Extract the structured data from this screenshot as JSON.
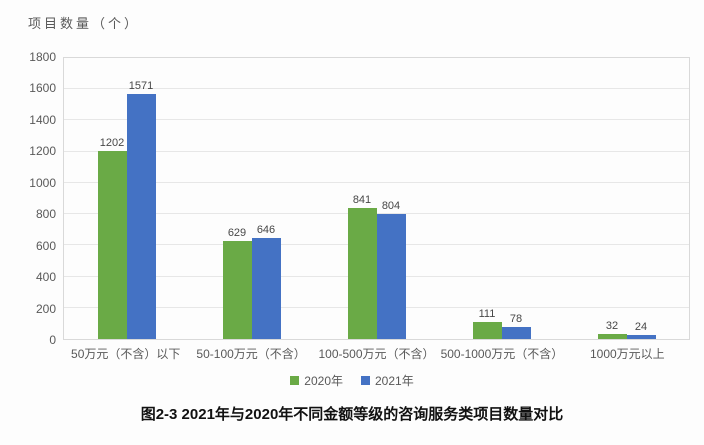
{
  "chart_data": {
    "type": "bar",
    "title": "",
    "ylabel": "项目数量（个）",
    "xlabel": "",
    "categories": [
      "50万元（不含）以下",
      "50-100万元（不含）",
      "100-500万元（不含）",
      "500-1000万元（不含）",
      "1000万元以上"
    ],
    "series": [
      {
        "name": "2020年",
        "color": "#6aaa46",
        "values": [
          1202,
          629,
          841,
          111,
          32
        ]
      },
      {
        "name": "2021年",
        "color": "#4472c4",
        "values": [
          1571,
          646,
          804,
          78,
          24
        ]
      }
    ],
    "ylim": [
      0,
      1800
    ],
    "ytick_step": 200,
    "grid": true,
    "legend_position": "bottom",
    "bar_value_labels": true
  },
  "caption": "图2-3 2021年与2020年不同金额等级的咨询服务类项目数量对比"
}
